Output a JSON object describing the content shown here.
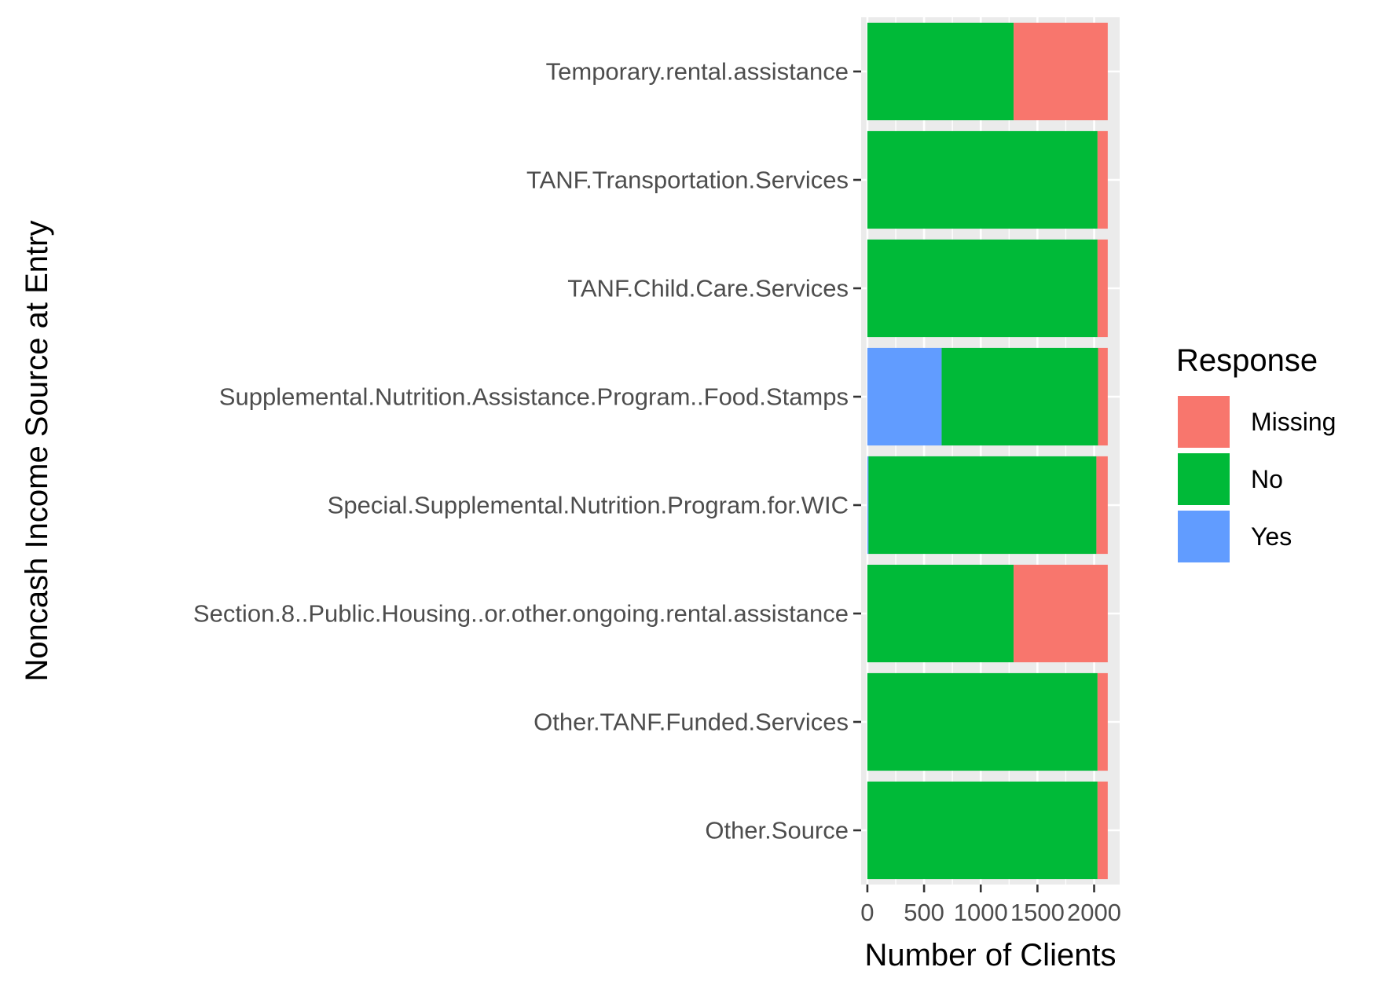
{
  "chart_data": {
    "type": "bar",
    "orientation": "horizontal",
    "stacked": true,
    "xlabel": "Number of Clients",
    "ylabel": "Noncash Income Source at Entry",
    "xlim": [
      -55,
      2225
    ],
    "x_ticks": [
      0,
      500,
      1000,
      1500,
      2000
    ],
    "grid": true,
    "legend": {
      "title": "Response",
      "position": "right"
    },
    "categories": [
      "Temporary.rental.assistance",
      "TANF.Transportation.Services",
      "TANF.Child.Care.Services",
      "Supplemental.Nutrition.Assistance.Program..Food.Stamps",
      "Special.Supplemental.Nutrition.Program.for.WIC",
      "Section.8..Public.Housing..or.other.ongoing.rental.assistance",
      "Other.TANF.Funded.Services",
      "Other.Source"
    ],
    "series": [
      {
        "name": "Missing",
        "color": "#F8766D",
        "values": [
          830,
          90,
          90,
          85,
          100,
          830,
          90,
          90
        ]
      },
      {
        "name": "No",
        "color": "#00BA38",
        "values": [
          1290,
          2030,
          2030,
          1380,
          2010,
          1290,
          2030,
          2030
        ]
      },
      {
        "name": "Yes",
        "color": "#619CFF",
        "values": [
          0,
          0,
          0,
          655,
          10,
          0,
          0,
          0
        ]
      }
    ]
  }
}
